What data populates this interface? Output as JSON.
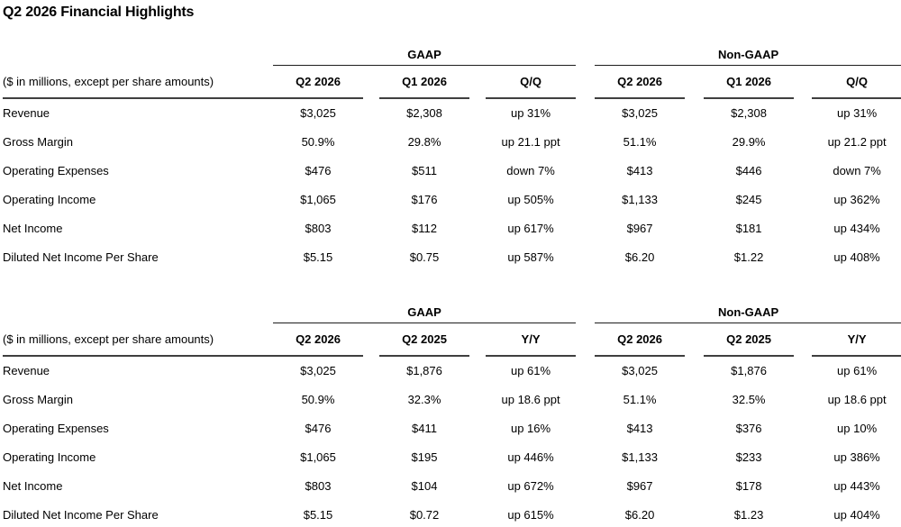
{
  "page_title": "Q2 2026 Financial Highlights",
  "colors": {
    "background": "#ffffff",
    "text": "#000000",
    "rule_thin": "#1d1d1d",
    "rule_thick": "#3f3f3f"
  },
  "tables": [
    {
      "id": "quarter-over-quarter",
      "label_header": "($ in millions, except per share amounts)",
      "group_headers": [
        "GAAP",
        "Non-GAAP"
      ],
      "col_headers": [
        "Q2 2026",
        "Q1 2026",
        "Q/Q",
        "Q2 2026",
        "Q1 2026",
        "Q/Q"
      ],
      "rows": [
        {
          "label": "Revenue",
          "values": [
            "$3,025",
            "$2,308",
            "up 31%",
            "$3,025",
            "$2,308",
            "up 31%"
          ]
        },
        {
          "label": "Gross Margin",
          "values": [
            "50.9%",
            "29.8%",
            "up 21.1 ppt",
            "51.1%",
            "29.9%",
            "up 21.2 ppt"
          ]
        },
        {
          "label": "Operating Expenses",
          "values": [
            "$476",
            "$511",
            "down 7%",
            "$413",
            "$446",
            "down 7%"
          ]
        },
        {
          "label": "Operating Income",
          "values": [
            "$1,065",
            "$176",
            "up 505%",
            "$1,133",
            "$245",
            "up 362%"
          ]
        },
        {
          "label": "Net Income",
          "values": [
            "$803",
            "$112",
            "up 617%",
            "$967",
            "$181",
            "up 434%"
          ]
        },
        {
          "label": "Diluted Net Income Per Share",
          "values": [
            "$5.15",
            "$0.75",
            "up 587%",
            "$6.20",
            "$1.22",
            "up 408%"
          ]
        }
      ]
    },
    {
      "id": "year-over-year",
      "label_header": "($ in millions, except per share amounts)",
      "group_headers": [
        "GAAP",
        "Non-GAAP"
      ],
      "col_headers": [
        "Q2 2026",
        "Q2 2025",
        "Y/Y",
        "Q2 2026",
        "Q2 2025",
        "Y/Y"
      ],
      "rows": [
        {
          "label": "Revenue",
          "values": [
            "$3,025",
            "$1,876",
            "up 61%",
            "$3,025",
            "$1,876",
            "up 61%"
          ]
        },
        {
          "label": "Gross Margin",
          "values": [
            "50.9%",
            "32.3%",
            "up 18.6 ppt",
            "51.1%",
            "32.5%",
            "up 18.6 ppt"
          ]
        },
        {
          "label": "Operating Expenses",
          "values": [
            "$476",
            "$411",
            "up 16%",
            "$413",
            "$376",
            "up 10%"
          ]
        },
        {
          "label": "Operating Income",
          "values": [
            "$1,065",
            "$195",
            "up 446%",
            "$1,133",
            "$233",
            "up 386%"
          ]
        },
        {
          "label": "Net Income",
          "values": [
            "$803",
            "$104",
            "up 672%",
            "$967",
            "$178",
            "up 443%"
          ]
        },
        {
          "label": "Diluted Net Income Per Share",
          "values": [
            "$5.15",
            "$0.72",
            "up 615%",
            "$6.20",
            "$1.23",
            "up 404%"
          ]
        }
      ]
    }
  ]
}
